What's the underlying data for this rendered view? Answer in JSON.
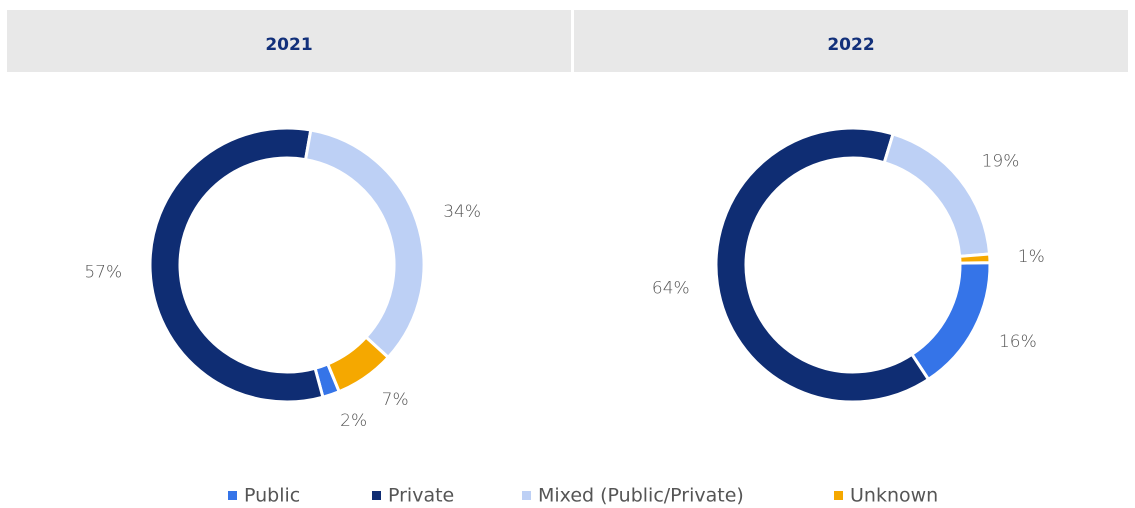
{
  "chart_data": [
    {
      "type": "donut",
      "title": "2021",
      "categories": [
        "Public",
        "Private",
        "Mixed (Public/Private)",
        "Unknown"
      ],
      "values": [
        2,
        57,
        34,
        7
      ],
      "value_labels": [
        "2%",
        "57%",
        "34%",
        "7%"
      ],
      "colors": [
        "#3574e8",
        "#0f2d73",
        "#bdd0f5",
        "#f5a800"
      ]
    },
    {
      "type": "donut",
      "title": "2022",
      "categories": [
        "Public",
        "Private",
        "Mixed (Public/Private)",
        "Unknown"
      ],
      "values": [
        16,
        64,
        19,
        1
      ],
      "value_labels": [
        "16%",
        "64%",
        "19%",
        "1%"
      ],
      "colors": [
        "#3574e8",
        "#0f2d73",
        "#bdd0f5",
        "#f5a800"
      ]
    }
  ]
}
